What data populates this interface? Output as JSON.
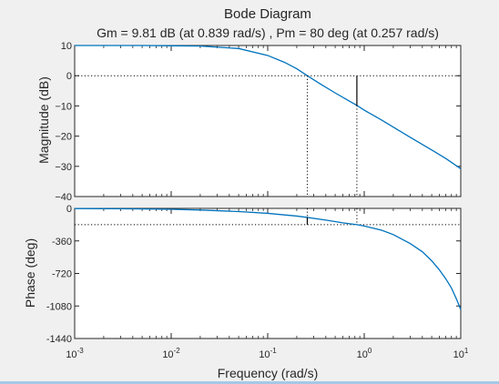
{
  "window": {
    "background": "#f0f0f0",
    "bottom_border": "#a6c8e6"
  },
  "chart_data": {
    "type": "line",
    "title": "Bode Diagram",
    "subtitle": "Gm = 9.81 dB (at 0.839 rad/s) ,  Pm = 80 deg (at 0.257 rad/s)",
    "xlabel": "Frequency  (rad/s)",
    "xscale": "log",
    "xlim": [
      0.001,
      10
    ],
    "xticks": [
      {
        "base": "10",
        "exp": "-3",
        "value": 0.001
      },
      {
        "base": "10",
        "exp": "-2",
        "value": 0.01
      },
      {
        "base": "10",
        "exp": "-1",
        "value": 0.1
      },
      {
        "base": "10",
        "exp": "0",
        "value": 1
      },
      {
        "base": "10",
        "exp": "1",
        "value": 10
      }
    ],
    "line_color": "#0072bd",
    "grid": false,
    "magnitude": {
      "ylabel": "Magnitude (dB)",
      "ylim": [
        -40,
        10
      ],
      "yticks": [
        "10",
        "0",
        "−10",
        "−20",
        "−30",
        "−40"
      ],
      "ytick_values": [
        10,
        0,
        -10,
        -20,
        -30,
        -40
      ],
      "x": [
        0.001,
        0.002,
        0.005,
        0.01,
        0.02,
        0.05,
        0.1,
        0.15,
        0.2,
        0.257,
        0.35,
        0.5,
        0.7,
        0.839,
        1,
        1.5,
        2,
        3,
        5,
        7,
        10
      ],
      "y": [
        10,
        10,
        10,
        9.9,
        9.8,
        9.0,
        6.7,
        4.4,
        2.3,
        0,
        -2.7,
        -5.7,
        -8.4,
        -9.81,
        -11.4,
        -14.6,
        -17.0,
        -20.4,
        -24.6,
        -27.4,
        -30.8
      ],
      "reference_line": 0,
      "gain_margin": {
        "frequency": 0.839,
        "value_db": 9.81
      }
    },
    "phase": {
      "ylabel": "Phase (deg)",
      "ylim": [
        -1440,
        0
      ],
      "yticks": [
        "0",
        "-360",
        "-720",
        "-1080",
        "-1440"
      ],
      "ytick_values": [
        0,
        -360,
        -720,
        -1080,
        -1440
      ],
      "x": [
        0.001,
        0.002,
        0.005,
        0.01,
        0.02,
        0.05,
        0.1,
        0.2,
        0.257,
        0.4,
        0.6,
        0.839,
        1,
        1.5,
        2,
        3,
        4,
        5,
        6,
        7,
        8,
        9,
        10
      ],
      "y": [
        -2,
        -3,
        -6,
        -10,
        -18,
        -35,
        -55,
        -85,
        -100,
        -130,
        -160,
        -180,
        -195,
        -240,
        -290,
        -390,
        -480,
        -580,
        -680,
        -780,
        -880,
        -1000,
        -1120
      ],
      "reference_line": -180,
      "phase_margin": {
        "frequency": 0.257,
        "value_deg": 80
      }
    }
  }
}
